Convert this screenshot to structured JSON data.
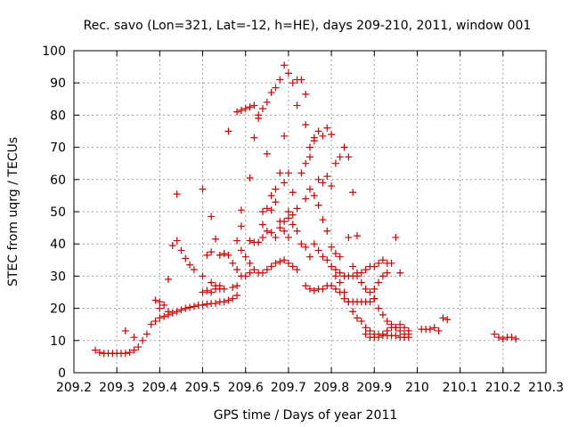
{
  "chart_data": {
    "type": "scatter",
    "title": "Rec. savo (Lon=321, Lat=-12, h=HE), days 209-210, 2011, window 001",
    "xlabel": "GPS time / Days of year 2011",
    "ylabel": "STEC from uqrg / TECUs",
    "xlim": [
      209.2,
      210.3
    ],
    "ylim": [
      0,
      100
    ],
    "xticks": [
      "209.2",
      "209.3",
      "209.4",
      "209.5",
      "209.6",
      "209.7",
      "209.8",
      "209.9",
      "210",
      "210.1",
      "210.2",
      "210.3"
    ],
    "yticks": [
      "0",
      "10",
      "20",
      "30",
      "40",
      "50",
      "60",
      "70",
      "80",
      "90",
      "100"
    ],
    "grid": true,
    "marker": "plus",
    "marker_color": "#cc0000",
    "series": [
      {
        "points": [
          [
            209.25,
            7
          ],
          [
            209.26,
            6.3
          ],
          [
            209.27,
            6
          ],
          [
            209.28,
            6
          ],
          [
            209.29,
            6
          ],
          [
            209.3,
            6
          ],
          [
            209.31,
            6
          ],
          [
            209.32,
            6
          ],
          [
            209.33,
            6.3
          ],
          [
            209.34,
            7
          ],
          [
            209.35,
            8
          ],
          [
            209.36,
            10
          ],
          [
            209.37,
            12
          ],
          [
            209.32,
            13
          ],
          [
            209.34,
            11
          ],
          [
            209.38,
            15
          ],
          [
            209.39,
            16
          ],
          [
            209.4,
            17
          ],
          [
            209.41,
            17.5
          ],
          [
            209.42,
            18
          ],
          [
            209.43,
            18.5
          ],
          [
            209.44,
            19
          ],
          [
            209.45,
            19.5
          ],
          [
            209.46,
            20
          ],
          [
            209.47,
            20.3
          ],
          [
            209.48,
            20.6
          ],
          [
            209.49,
            21
          ],
          [
            209.5,
            21
          ],
          [
            209.51,
            21.3
          ],
          [
            209.52,
            21.5
          ],
          [
            209.53,
            21.5
          ],
          [
            209.54,
            22
          ],
          [
            209.55,
            22
          ],
          [
            209.56,
            22.5
          ],
          [
            209.57,
            23
          ],
          [
            209.58,
            24
          ],
          [
            209.39,
            22.5
          ],
          [
            209.4,
            22
          ],
          [
            209.41,
            21
          ],
          [
            209.42,
            19
          ],
          [
            209.4,
            20
          ],
          [
            209.42,
            29
          ],
          [
            209.43,
            39.5
          ],
          [
            209.44,
            41
          ],
          [
            209.45,
            38
          ],
          [
            209.46,
            35.5
          ],
          [
            209.47,
            33.5
          ],
          [
            209.48,
            32
          ],
          [
            209.5,
            30
          ],
          [
            209.52,
            28
          ],
          [
            209.53,
            27
          ],
          [
            209.54,
            26
          ],
          [
            209.55,
            26
          ],
          [
            209.57,
            26.5
          ],
          [
            209.58,
            27
          ],
          [
            209.44,
            55.5
          ],
          [
            209.5,
            57
          ],
          [
            209.52,
            48.5
          ],
          [
            209.53,
            41.5
          ],
          [
            209.51,
            36.5
          ],
          [
            209.52,
            37.5
          ],
          [
            209.54,
            36.5
          ],
          [
            209.55,
            37
          ],
          [
            209.56,
            36.5
          ],
          [
            209.57,
            34
          ],
          [
            209.58,
            32
          ],
          [
            209.59,
            30
          ],
          [
            209.5,
            25
          ],
          [
            209.51,
            25.5
          ],
          [
            209.52,
            25
          ],
          [
            209.53,
            26
          ],
          [
            209.54,
            27
          ],
          [
            209.55,
            37
          ],
          [
            209.56,
            75
          ],
          [
            209.58,
            81
          ],
          [
            209.59,
            81.5
          ],
          [
            209.6,
            82
          ],
          [
            209.61,
            82.5
          ],
          [
            209.62,
            83
          ],
          [
            209.63,
            80
          ],
          [
            209.63,
            79
          ],
          [
            209.64,
            82
          ],
          [
            209.65,
            84
          ],
          [
            209.66,
            87
          ],
          [
            209.67,
            88.5
          ],
          [
            209.68,
            91
          ],
          [
            209.69,
            95.5
          ],
          [
            209.7,
            93
          ],
          [
            209.71,
            90
          ],
          [
            209.72,
            91
          ],
          [
            209.73,
            91
          ],
          [
            209.74,
            86.5
          ],
          [
            209.72,
            83
          ],
          [
            209.59,
            50.5
          ],
          [
            209.59,
            45.5
          ],
          [
            209.58,
            41
          ],
          [
            209.59,
            38
          ],
          [
            209.6,
            36
          ],
          [
            209.61,
            34
          ],
          [
            209.61,
            41
          ],
          [
            209.62,
            40.5
          ],
          [
            209.63,
            40.5
          ],
          [
            209.64,
            42
          ],
          [
            209.65,
            44
          ],
          [
            209.66,
            43.5
          ],
          [
            209.67,
            42
          ],
          [
            209.68,
            45
          ],
          [
            209.69,
            47
          ],
          [
            209.7,
            48
          ],
          [
            209.71,
            46
          ],
          [
            209.72,
            44
          ],
          [
            209.6,
            30
          ],
          [
            209.61,
            31
          ],
          [
            209.62,
            32
          ],
          [
            209.63,
            31
          ],
          [
            209.64,
            31
          ],
          [
            209.65,
            32
          ],
          [
            209.66,
            33
          ],
          [
            209.67,
            34
          ],
          [
            209.68,
            34.5
          ],
          [
            209.69,
            35
          ],
          [
            209.7,
            34
          ],
          [
            209.71,
            33
          ],
          [
            209.72,
            32
          ],
          [
            209.61,
            60.5
          ],
          [
            209.62,
            73
          ],
          [
            209.64,
            50
          ],
          [
            209.64,
            46
          ],
          [
            209.65,
            51
          ],
          [
            209.66,
            55
          ],
          [
            209.67,
            57
          ],
          [
            209.68,
            62
          ],
          [
            209.69,
            59
          ],
          [
            209.7,
            50
          ],
          [
            209.71,
            49
          ],
          [
            209.72,
            51
          ],
          [
            209.65,
            68
          ],
          [
            209.66,
            50.5
          ],
          [
            209.67,
            53
          ],
          [
            209.68,
            47
          ],
          [
            209.69,
            44
          ],
          [
            209.7,
            42
          ],
          [
            209.69,
            73.5
          ],
          [
            209.7,
            62
          ],
          [
            209.71,
            56
          ],
          [
            209.74,
            77
          ],
          [
            209.75,
            70
          ],
          [
            209.76,
            73
          ],
          [
            209.77,
            75
          ],
          [
            209.78,
            73.5
          ],
          [
            209.79,
            76
          ],
          [
            209.8,
            74
          ],
          [
            209.81,
            65
          ],
          [
            209.82,
            67
          ],
          [
            209.83,
            70
          ],
          [
            209.84,
            67
          ],
          [
            209.85,
            56
          ],
          [
            209.73,
            62
          ],
          [
            209.74,
            65
          ],
          [
            209.75,
            67
          ],
          [
            209.76,
            72
          ],
          [
            209.77,
            60
          ],
          [
            209.78,
            59
          ],
          [
            209.79,
            61
          ],
          [
            209.8,
            58
          ],
          [
            209.73,
            40
          ],
          [
            209.74,
            39
          ],
          [
            209.75,
            36
          ],
          [
            209.76,
            40
          ],
          [
            209.77,
            38
          ],
          [
            209.78,
            36
          ],
          [
            209.79,
            35
          ],
          [
            209.8,
            33
          ],
          [
            209.81,
            32
          ],
          [
            209.82,
            31
          ],
          [
            209.83,
            30
          ],
          [
            209.84,
            30
          ],
          [
            209.85,
            30
          ],
          [
            209.86,
            31
          ],
          [
            209.87,
            31
          ],
          [
            209.88,
            32
          ],
          [
            209.89,
            33
          ],
          [
            209.9,
            33
          ],
          [
            209.91,
            34
          ],
          [
            209.92,
            35
          ],
          [
            209.93,
            34
          ],
          [
            209.74,
            54
          ],
          [
            209.75,
            57
          ],
          [
            209.76,
            55
          ],
          [
            209.77,
            52
          ],
          [
            209.78,
            47.5
          ],
          [
            209.79,
            44
          ],
          [
            209.8,
            39
          ],
          [
            209.81,
            37
          ],
          [
            209.82,
            36
          ],
          [
            209.84,
            42
          ],
          [
            209.86,
            42.5
          ],
          [
            209.74,
            27
          ],
          [
            209.75,
            26
          ],
          [
            209.76,
            25.5
          ],
          [
            209.77,
            26
          ],
          [
            209.78,
            26
          ],
          [
            209.79,
            27
          ],
          [
            209.8,
            27
          ],
          [
            209.81,
            26
          ],
          [
            209.82,
            25
          ],
          [
            209.83,
            23
          ],
          [
            209.84,
            22
          ],
          [
            209.85,
            22
          ],
          [
            209.86,
            22
          ],
          [
            209.87,
            22
          ],
          [
            209.88,
            22
          ],
          [
            209.89,
            22
          ],
          [
            209.9,
            23
          ],
          [
            209.8,
            33
          ],
          [
            209.81,
            30
          ],
          [
            209.82,
            28
          ],
          [
            209.83,
            25
          ],
          [
            209.84,
            22
          ],
          [
            209.85,
            19
          ],
          [
            209.86,
            17
          ],
          [
            209.87,
            16
          ],
          [
            209.88,
            14
          ],
          [
            209.89,
            13
          ],
          [
            209.9,
            12
          ],
          [
            209.91,
            12
          ],
          [
            209.92,
            11.5
          ],
          [
            209.93,
            11.5
          ],
          [
            209.94,
            11.5
          ],
          [
            209.95,
            11.5
          ],
          [
            209.96,
            11
          ],
          [
            209.97,
            11
          ],
          [
            209.98,
            11
          ],
          [
            209.85,
            33
          ],
          [
            209.86,
            30
          ],
          [
            209.87,
            28
          ],
          [
            209.88,
            26
          ],
          [
            209.89,
            25
          ],
          [
            209.9,
            23
          ],
          [
            209.91,
            20
          ],
          [
            209.92,
            18
          ],
          [
            209.93,
            16
          ],
          [
            209.94,
            15
          ],
          [
            209.95,
            14
          ],
          [
            209.96,
            13
          ],
          [
            209.97,
            12
          ],
          [
            209.98,
            12
          ],
          [
            209.9,
            26
          ],
          [
            209.91,
            28
          ],
          [
            209.92,
            30
          ],
          [
            209.93,
            31
          ],
          [
            209.94,
            34
          ],
          [
            209.95,
            42
          ],
          [
            209.96,
            31
          ],
          [
            209.88,
            12
          ],
          [
            209.89,
            11
          ],
          [
            209.9,
            11
          ],
          [
            209.91,
            11
          ],
          [
            209.92,
            12
          ],
          [
            209.93,
            13
          ],
          [
            209.94,
            14
          ],
          [
            209.95,
            14
          ],
          [
            209.96,
            15
          ],
          [
            209.97,
            14
          ],
          [
            209.98,
            13
          ],
          [
            210.01,
            13.5
          ],
          [
            210.02,
            13.5
          ],
          [
            210.03,
            13.5
          ],
          [
            210.04,
            14
          ],
          [
            210.05,
            13
          ],
          [
            210.06,
            17
          ],
          [
            210.07,
            16.5
          ],
          [
            210.18,
            12
          ],
          [
            210.19,
            11
          ],
          [
            210.2,
            10.5
          ],
          [
            210.21,
            11
          ],
          [
            210.22,
            11
          ],
          [
            210.23,
            10.5
          ]
        ]
      }
    ]
  }
}
